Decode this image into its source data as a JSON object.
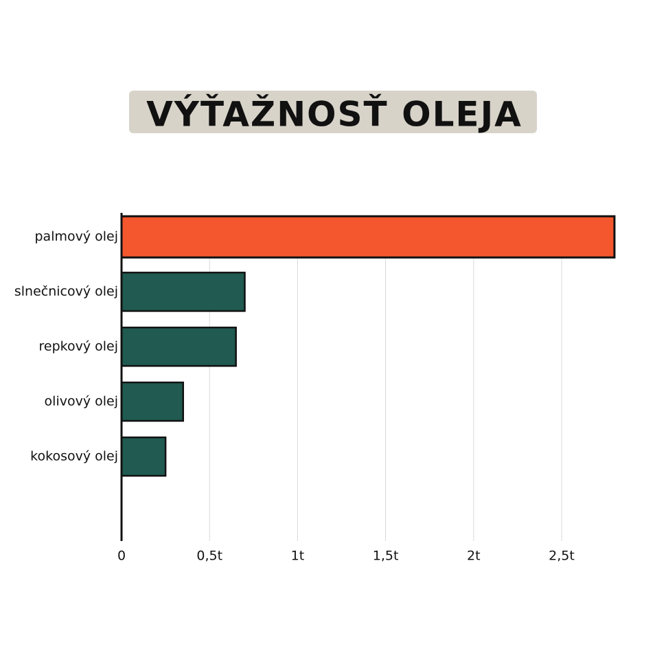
{
  "chart_data": {
    "type": "bar",
    "orientation": "horizontal",
    "title": "VÝŤAŽNOSŤ OLEJA",
    "categories": [
      "palmový olej",
      "slnečnicový olej",
      "repkový olej",
      "olivový olej",
      "kokosový olej"
    ],
    "values": [
      2.8,
      0.7,
      0.65,
      0.35,
      0.25
    ],
    "colors": [
      "#f4572d",
      "#205a50",
      "#205a50",
      "#205a50",
      "#205a50"
    ],
    "xlim": [
      0,
      2.9
    ],
    "xticks": [
      0,
      {
        "value": 0.5,
        "label": "0,5t"
      },
      {
        "value": 1,
        "label": "1t"
      },
      {
        "value": 1.5,
        "label": "1,5t"
      },
      {
        "value": 2,
        "label": "2t"
      },
      {
        "value": 2.5,
        "label": "2,5t"
      }
    ],
    "grid": true
  }
}
